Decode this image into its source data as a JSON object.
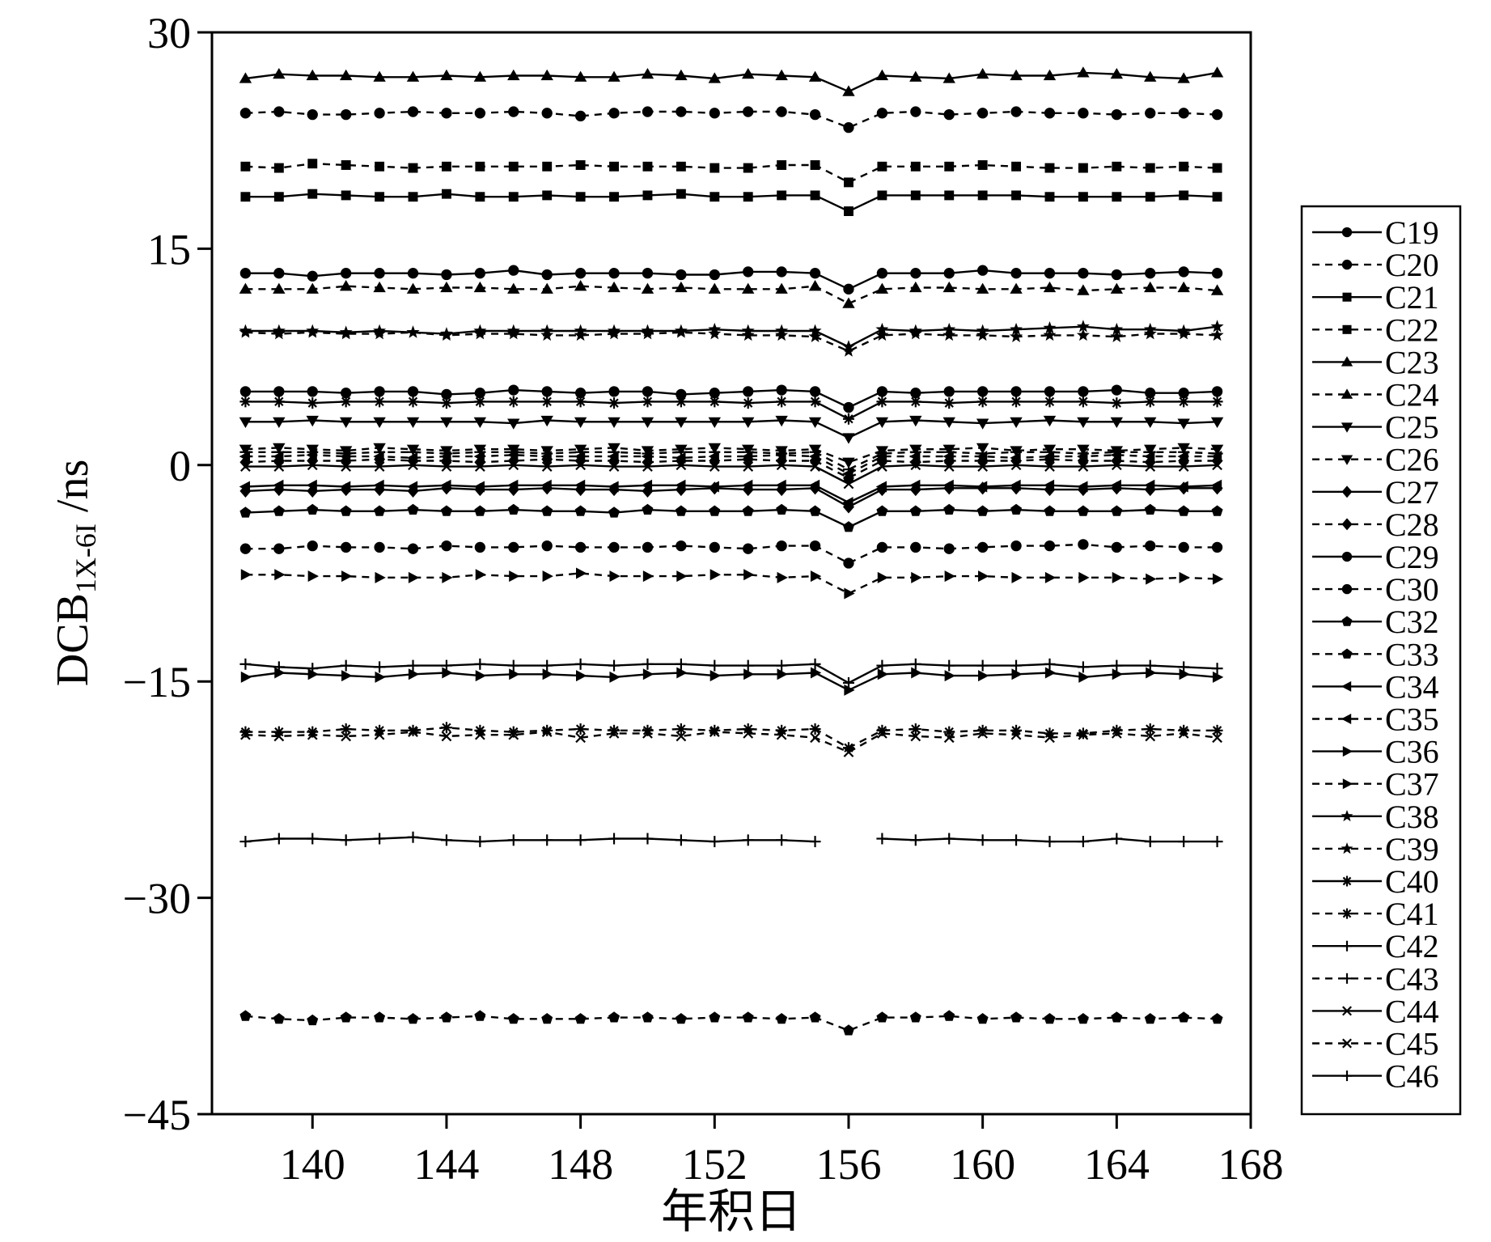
{
  "chart_data": {
    "type": "line",
    "xlabel": "年积日",
    "ylabel_main": "DCB",
    "ylabel_sub": "1X-6I",
    "ylabel_unit": " /ns",
    "xlim": [
      137,
      168
    ],
    "ylim": [
      -45,
      30
    ],
    "xticks": [
      140,
      144,
      148,
      152,
      156,
      160,
      164,
      168
    ],
    "yticks": [
      30,
      15,
      0,
      -15,
      -30,
      -45
    ],
    "ytick_labels": [
      "30",
      "15",
      "0",
      "−15",
      "−30",
      "−45"
    ],
    "x": [
      138,
      139,
      140,
      141,
      142,
      143,
      144,
      145,
      146,
      147,
      148,
      149,
      150,
      151,
      152,
      153,
      154,
      155,
      156,
      157,
      158,
      159,
      160,
      161,
      162,
      163,
      164,
      165,
      166,
      167
    ],
    "legend_position": "right",
    "series": [
      {
        "name": "C19",
        "marker": "circle",
        "dash": "solid",
        "values": [
          13.3,
          13.3,
          13.1,
          13.3,
          13.3,
          13.3,
          13.2,
          13.3,
          13.5,
          13.2,
          13.3,
          13.3,
          13.3,
          13.2,
          13.2,
          13.4,
          13.4,
          13.3,
          12.2,
          13.3,
          13.3,
          13.3,
          13.5,
          13.3,
          13.3,
          13.3,
          13.2,
          13.3,
          13.4,
          13.3
        ]
      },
      {
        "name": "C20",
        "marker": "circle",
        "dash": "dashed",
        "values": [
          24.4,
          24.5,
          24.3,
          24.3,
          24.4,
          24.5,
          24.4,
          24.4,
          24.5,
          24.4,
          24.2,
          24.4,
          24.5,
          24.5,
          24.4,
          24.5,
          24.5,
          24.3,
          23.4,
          24.4,
          24.5,
          24.3,
          24.4,
          24.5,
          24.4,
          24.4,
          24.3,
          24.4,
          24.4,
          24.3
        ]
      },
      {
        "name": "C21",
        "marker": "square",
        "dash": "solid",
        "values": [
          18.6,
          18.6,
          18.8,
          18.7,
          18.6,
          18.6,
          18.8,
          18.6,
          18.6,
          18.7,
          18.6,
          18.6,
          18.7,
          18.8,
          18.6,
          18.6,
          18.7,
          18.7,
          17.6,
          18.7,
          18.7,
          18.7,
          18.7,
          18.7,
          18.6,
          18.6,
          18.6,
          18.6,
          18.7,
          18.6
        ]
      },
      {
        "name": "C22",
        "marker": "square",
        "dash": "dashed",
        "values": [
          20.7,
          20.6,
          20.9,
          20.8,
          20.7,
          20.6,
          20.7,
          20.7,
          20.7,
          20.7,
          20.8,
          20.7,
          20.7,
          20.7,
          20.6,
          20.6,
          20.8,
          20.8,
          19.6,
          20.7,
          20.7,
          20.7,
          20.8,
          20.7,
          20.6,
          20.6,
          20.7,
          20.6,
          20.7,
          20.6
        ]
      },
      {
        "name": "C23",
        "marker": "triangle-up",
        "dash": "solid",
        "values": [
          26.8,
          27.1,
          27.0,
          27.0,
          26.9,
          26.9,
          27.0,
          26.9,
          27.0,
          27.0,
          26.9,
          26.9,
          27.1,
          27.0,
          26.8,
          27.1,
          27.0,
          26.9,
          25.9,
          27.0,
          26.9,
          26.8,
          27.1,
          27.0,
          27.0,
          27.2,
          27.1,
          26.9,
          26.8,
          27.2
        ]
      },
      {
        "name": "C24",
        "marker": "triangle-up",
        "dash": "dashed",
        "values": [
          12.2,
          12.2,
          12.2,
          12.4,
          12.3,
          12.2,
          12.3,
          12.3,
          12.2,
          12.2,
          12.4,
          12.3,
          12.2,
          12.3,
          12.2,
          12.2,
          12.2,
          12.4,
          11.2,
          12.2,
          12.3,
          12.3,
          12.2,
          12.2,
          12.3,
          12.1,
          12.2,
          12.3,
          12.3,
          12.1
        ]
      },
      {
        "name": "C25",
        "marker": "triangle-down",
        "dash": "solid",
        "values": [
          3.0,
          3.0,
          3.1,
          3.0,
          3.0,
          3.0,
          3.0,
          3.0,
          2.9,
          3.1,
          3.0,
          3.0,
          3.0,
          3.0,
          3.0,
          3.0,
          3.1,
          3.0,
          1.9,
          3.0,
          3.1,
          3.0,
          2.9,
          3.0,
          3.1,
          3.0,
          3.0,
          3.0,
          2.9,
          3.0
        ]
      },
      {
        "name": "C26",
        "marker": "triangle-down",
        "dash": "dashed",
        "values": [
          1.1,
          1.2,
          1.1,
          1.0,
          1.2,
          1.1,
          1.0,
          1.1,
          1.1,
          1.0,
          1.1,
          1.2,
          1.0,
          1.1,
          1.2,
          1.1,
          1.0,
          1.1,
          0.2,
          1.0,
          1.1,
          1.1,
          1.2,
          1.0,
          1.1,
          1.1,
          1.0,
          1.1,
          1.2,
          1.1
        ]
      },
      {
        "name": "C27",
        "marker": "diamond",
        "dash": "solid",
        "values": [
          -1.8,
          -1.7,
          -1.8,
          -1.7,
          -1.7,
          -1.8,
          -1.6,
          -1.7,
          -1.7,
          -1.6,
          -1.7,
          -1.7,
          -1.8,
          -1.7,
          -1.6,
          -1.7,
          -1.7,
          -1.6,
          -2.9,
          -1.7,
          -1.7,
          -1.6,
          -1.6,
          -1.6,
          -1.7,
          -1.7,
          -1.6,
          -1.7,
          -1.6,
          -1.6
        ]
      },
      {
        "name": "C28",
        "marker": "diamond",
        "dash": "dashed",
        "values": [
          0.2,
          0.3,
          0.3,
          0.3,
          0.4,
          0.3,
          0.3,
          0.2,
          0.3,
          0.4,
          0.3,
          0.3,
          0.2,
          0.3,
          0.3,
          0.4,
          0.3,
          0.3,
          -0.9,
          0.3,
          0.2,
          0.3,
          0.3,
          0.3,
          0.4,
          0.3,
          0.3,
          0.2,
          0.3,
          0.3
        ]
      },
      {
        "name": "C29",
        "marker": "circle",
        "dash": "solid",
        "values": [
          5.1,
          5.1,
          5.1,
          5.0,
          5.1,
          5.1,
          4.9,
          5.0,
          5.2,
          5.1,
          5.0,
          5.1,
          5.1,
          4.9,
          5.0,
          5.1,
          5.2,
          5.1,
          4.0,
          5.1,
          5.0,
          5.1,
          5.1,
          5.1,
          5.1,
          5.1,
          5.2,
          5.0,
          5.0,
          5.1
        ]
      },
      {
        "name": "C30",
        "marker": "circle",
        "dash": "dashed",
        "values": [
          -5.8,
          -5.8,
          -5.6,
          -5.7,
          -5.7,
          -5.8,
          -5.6,
          -5.7,
          -5.7,
          -5.6,
          -5.7,
          -5.7,
          -5.7,
          -5.6,
          -5.7,
          -5.8,
          -5.6,
          -5.6,
          -6.8,
          -5.7,
          -5.7,
          -5.8,
          -5.7,
          -5.6,
          -5.6,
          -5.5,
          -5.7,
          -5.6,
          -5.7,
          -5.7
        ]
      },
      {
        "name": "C32",
        "marker": "pentagon",
        "dash": "solid",
        "values": [
          -3.3,
          -3.2,
          -3.1,
          -3.2,
          -3.2,
          -3.1,
          -3.2,
          -3.2,
          -3.1,
          -3.2,
          -3.2,
          -3.3,
          -3.1,
          -3.2,
          -3.2,
          -3.2,
          -3.1,
          -3.2,
          -4.3,
          -3.2,
          -3.2,
          -3.1,
          -3.2,
          -3.1,
          -3.2,
          -3.2,
          -3.2,
          -3.1,
          -3.2,
          -3.2
        ]
      },
      {
        "name": "C33",
        "marker": "pentagon",
        "dash": "dashed",
        "values": [
          -38.2,
          -38.4,
          -38.5,
          -38.3,
          -38.3,
          -38.4,
          -38.3,
          -38.2,
          -38.4,
          -38.4,
          -38.4,
          -38.3,
          -38.3,
          -38.4,
          -38.3,
          -38.3,
          -38.4,
          -38.3,
          -39.2,
          -38.3,
          -38.3,
          -38.2,
          -38.4,
          -38.3,
          -38.4,
          -38.4,
          -38.3,
          -38.4,
          -38.3,
          -38.4
        ]
      },
      {
        "name": "C34",
        "marker": "triangle-left",
        "dash": "solid",
        "values": [
          -1.5,
          -1.4,
          -1.4,
          -1.5,
          -1.4,
          -1.5,
          -1.4,
          -1.5,
          -1.4,
          -1.4,
          -1.4,
          -1.5,
          -1.4,
          -1.4,
          -1.5,
          -1.4,
          -1.4,
          -1.4,
          -2.6,
          -1.5,
          -1.4,
          -1.4,
          -1.5,
          -1.4,
          -1.4,
          -1.5,
          -1.4,
          -1.4,
          -1.5,
          -1.4
        ]
      },
      {
        "name": "C35",
        "marker": "triangle-left",
        "dash": "dashed",
        "values": [
          0.6,
          0.6,
          0.7,
          0.6,
          0.6,
          0.5,
          0.6,
          0.6,
          0.7,
          0.6,
          0.6,
          0.6,
          0.6,
          0.5,
          0.6,
          0.6,
          0.7,
          0.6,
          -0.6,
          0.6,
          0.6,
          0.6,
          0.6,
          0.5,
          0.6,
          0.6,
          0.7,
          0.6,
          0.6,
          0.6
        ]
      },
      {
        "name": "C36",
        "marker": "triangle-right",
        "dash": "solid",
        "values": [
          -14.7,
          -14.4,
          -14.5,
          -14.6,
          -14.7,
          -14.5,
          -14.4,
          -14.6,
          -14.5,
          -14.5,
          -14.6,
          -14.7,
          -14.5,
          -14.4,
          -14.6,
          -14.5,
          -14.5,
          -14.4,
          -15.6,
          -14.5,
          -14.4,
          -14.6,
          -14.6,
          -14.5,
          -14.4,
          -14.7,
          -14.5,
          -14.4,
          -14.5,
          -14.7
        ]
      },
      {
        "name": "C37",
        "marker": "triangle-right",
        "dash": "dashed",
        "values": [
          -7.6,
          -7.6,
          -7.7,
          -7.7,
          -7.8,
          -7.8,
          -7.8,
          -7.6,
          -7.7,
          -7.7,
          -7.5,
          -7.7,
          -7.7,
          -7.7,
          -7.6,
          -7.6,
          -7.8,
          -7.7,
          -8.9,
          -7.8,
          -7.8,
          -7.7,
          -7.7,
          -7.8,
          -7.8,
          -7.8,
          -7.8,
          -7.9,
          -7.8,
          -7.9
        ]
      },
      {
        "name": "C38",
        "marker": "star",
        "dash": "solid",
        "values": [
          9.3,
          9.3,
          9.3,
          9.2,
          9.3,
          9.2,
          9.1,
          9.3,
          9.3,
          9.3,
          9.3,
          9.3,
          9.3,
          9.3,
          9.4,
          9.3,
          9.3,
          9.3,
          8.2,
          9.4,
          9.3,
          9.4,
          9.3,
          9.4,
          9.5,
          9.6,
          9.4,
          9.4,
          9.3,
          9.6
        ]
      },
      {
        "name": "C39",
        "marker": "star",
        "dash": "dashed",
        "values": [
          9.2,
          9.1,
          9.2,
          9.1,
          9.1,
          9.2,
          9.0,
          9.1,
          9.1,
          9.0,
          9.0,
          9.1,
          9.1,
          9.2,
          9.1,
          9.0,
          9.0,
          8.9,
          7.9,
          9.0,
          9.1,
          9.0,
          9.0,
          8.9,
          9.0,
          9.0,
          8.9,
          9.1,
          9.1,
          9.0
        ]
      },
      {
        "name": "C40",
        "marker": "asterisk",
        "dash": "solid",
        "values": [
          4.4,
          4.4,
          4.3,
          4.4,
          4.4,
          4.4,
          4.3,
          4.4,
          4.4,
          4.4,
          4.4,
          4.3,
          4.4,
          4.4,
          4.4,
          4.3,
          4.4,
          4.4,
          3.2,
          4.4,
          4.4,
          4.3,
          4.4,
          4.4,
          4.4,
          4.4,
          4.3,
          4.4,
          4.4,
          4.4
        ]
      },
      {
        "name": "C41",
        "marker": "asterisk",
        "dash": "dashed",
        "values": [
          -18.5,
          -18.5,
          -18.5,
          -18.3,
          -18.4,
          -18.4,
          -18.2,
          -18.4,
          -18.5,
          -18.4,
          -18.3,
          -18.4,
          -18.4,
          -18.3,
          -18.4,
          -18.3,
          -18.4,
          -18.3,
          -19.6,
          -18.4,
          -18.3,
          -18.5,
          -18.4,
          -18.4,
          -18.6,
          -18.6,
          -18.4,
          -18.3,
          -18.4,
          -18.4
        ]
      },
      {
        "name": "C42",
        "marker": "plus",
        "dash": "solid",
        "values": [
          -13.8,
          -14.0,
          -14.1,
          -13.9,
          -14.0,
          -13.9,
          -13.9,
          -13.8,
          -13.9,
          -13.9,
          -13.8,
          -13.9,
          -13.8,
          -13.8,
          -13.9,
          -13.9,
          -13.9,
          -13.8,
          -15.1,
          -13.9,
          -13.8,
          -13.9,
          -13.9,
          -13.9,
          -13.8,
          -14.0,
          -13.9,
          -13.9,
          -14.0,
          -14.1
        ]
      },
      {
        "name": "C43",
        "marker": "plus",
        "dash": "dashed",
        "values": [
          0.9,
          0.9,
          0.9,
          0.8,
          0.9,
          0.9,
          0.8,
          0.9,
          0.9,
          0.8,
          0.9,
          0.9,
          0.8,
          0.9,
          0.9,
          0.9,
          0.8,
          0.9,
          -0.3,
          0.8,
          0.9,
          0.9,
          0.8,
          0.9,
          0.9,
          0.8,
          0.9,
          0.9,
          0.9,
          0.8
        ]
      },
      {
        "name": "C44",
        "marker": "x",
        "dash": "solid",
        "values": [
          -0.1,
          -0.1,
          0.0,
          -0.1,
          -0.1,
          0.0,
          -0.1,
          -0.1,
          0.0,
          -0.1,
          0.0,
          -0.1,
          -0.1,
          0.0,
          -0.1,
          -0.1,
          0.0,
          -0.1,
          -1.3,
          -0.1,
          0.0,
          -0.1,
          -0.1,
          0.0,
          -0.1,
          -0.1,
          0.0,
          -0.1,
          -0.1,
          0.0
        ]
      },
      {
        "name": "C45",
        "marker": "x",
        "dash": "dashed",
        "values": [
          -18.7,
          -18.8,
          -18.7,
          -18.8,
          -18.7,
          -18.5,
          -18.8,
          -18.7,
          -18.7,
          -18.5,
          -18.9,
          -18.6,
          -18.6,
          -18.8,
          -18.5,
          -18.6,
          -18.7,
          -18.9,
          -19.9,
          -18.6,
          -18.8,
          -18.9,
          -18.6,
          -18.7,
          -18.9,
          -18.7,
          -18.6,
          -18.8,
          -18.6,
          -18.9
        ]
      },
      {
        "name": "C46",
        "marker": "plus",
        "dash": "solid",
        "values": [
          -26.1,
          -25.9,
          -25.9,
          -26.0,
          -25.9,
          -25.8,
          -26.0,
          -26.1,
          -26.0,
          -26.0,
          -26.0,
          -25.9,
          -25.9,
          -26.0,
          -26.1,
          -26.0,
          -26.0,
          -26.1,
          null,
          -25.9,
          -26.0,
          -25.9,
          -26.0,
          -26.0,
          -26.1,
          -26.1,
          -25.9,
          -26.1,
          -26.1,
          -26.1
        ]
      }
    ]
  }
}
